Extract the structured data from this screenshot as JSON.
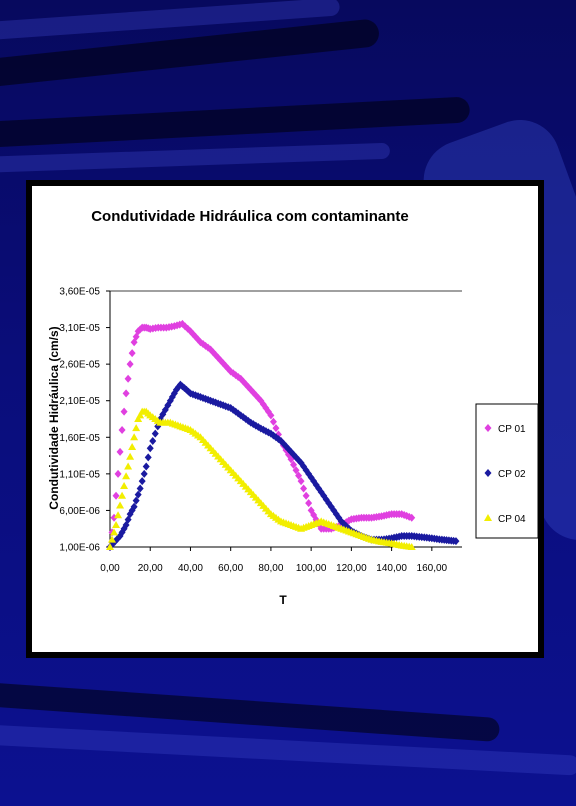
{
  "chart_data": {
    "type": "scatter",
    "title": "Condutividade Hidráulica  com contaminante",
    "xlabel": "T",
    "ylabel": "Condutividade Hidráulica (cm/s)",
    "xlim": [
      0,
      175
    ],
    "ylim": [
      1e-06,
      3.6e-05
    ],
    "x_ticks": [
      "0,00",
      "20,00",
      "40,00",
      "60,00",
      "80,00",
      "100,00",
      "120,00",
      "140,00",
      "160,00"
    ],
    "y_ticks": [
      "1,00E-06",
      "6,00E-06",
      "1,10E-05",
      "1,60E-05",
      "2,10E-05",
      "2,60E-05",
      "3,10E-05",
      "3,60E-05"
    ],
    "grid": "top line only",
    "legend_position": "right",
    "series": [
      {
        "name": "CP 01",
        "color": "#e040e0",
        "marker": "diamond",
        "x": [
          0,
          2,
          4,
          6,
          8,
          10,
          12,
          14,
          16,
          18,
          20,
          24,
          28,
          32,
          36,
          40,
          45,
          50,
          55,
          60,
          65,
          70,
          75,
          80,
          85,
          90,
          95,
          100,
          105,
          110,
          115,
          120,
          125,
          130,
          135,
          140,
          145,
          150
        ],
        "y": [
          1e-06,
          5e-06,
          1.1e-05,
          1.7e-05,
          2.2e-05,
          2.6e-05,
          2.9e-05,
          3.05e-05,
          3.1e-05,
          3.1e-05,
          3.08e-05,
          3.1e-05,
          3.1e-05,
          3.12e-05,
          3.15e-05,
          3.05e-05,
          2.9e-05,
          2.8e-05,
          2.65e-05,
          2.5e-05,
          2.4e-05,
          2.25e-05,
          2.1e-05,
          1.9e-05,
          1.55e-05,
          1.3e-05,
          1e-05,
          6e-06,
          3.5e-06,
          3.5e-06,
          4e-06,
          4.8e-06,
          5e-06,
          5e-06,
          5.2e-06,
          5.5e-06,
          5.5e-06,
          5e-06
        ]
      },
      {
        "name": "CP 02",
        "color": "#1a1aa0",
        "marker": "diamond",
        "x": [
          0,
          5,
          8,
          10,
          12,
          15,
          18,
          20,
          25,
          30,
          33,
          35,
          38,
          40,
          45,
          50,
          55,
          60,
          65,
          70,
          75,
          80,
          85,
          90,
          95,
          100,
          105,
          110,
          115,
          120,
          125,
          130,
          135,
          140,
          145,
          150,
          160,
          165,
          172
        ],
        "y": [
          1e-06,
          2.5e-06,
          4e-06,
          5.5e-06,
          6.5e-06,
          9e-06,
          1.2e-05,
          1.45e-05,
          1.85e-05,
          2.1e-05,
          2.25e-05,
          2.32e-05,
          2.25e-05,
          2.2e-05,
          2.15e-05,
          2.1e-05,
          2.05e-05,
          2e-05,
          1.9e-05,
          1.8e-05,
          1.72e-05,
          1.65e-05,
          1.55e-05,
          1.4e-05,
          1.25e-05,
          1.05e-05,
          8.5e-06,
          6.5e-06,
          4.5e-06,
          3.2e-06,
          2.5e-06,
          2e-06,
          2e-06,
          2.2e-06,
          2.5e-06,
          2.5e-06,
          2.2e-06,
          2e-06,
          1.8e-06
        ]
      },
      {
        "name": "CP 04",
        "color": "#f2ee00",
        "marker": "triangle",
        "x": [
          0,
          3,
          6,
          9,
          12,
          14,
          16,
          18,
          20,
          25,
          30,
          35,
          40,
          45,
          50,
          55,
          60,
          65,
          70,
          75,
          80,
          85,
          90,
          95,
          100,
          105,
          110,
          115,
          120,
          125,
          130,
          135,
          140,
          145,
          150
        ],
        "y": [
          1e-06,
          4e-06,
          8e-06,
          1.2e-05,
          1.6e-05,
          1.85e-05,
          1.95e-05,
          1.95e-05,
          1.9e-05,
          1.8e-05,
          1.8e-05,
          1.75e-05,
          1.7e-05,
          1.6e-05,
          1.45e-05,
          1.3e-05,
          1.15e-05,
          1e-05,
          8.5e-06,
          7e-06,
          5.5e-06,
          4.5e-06,
          4e-06,
          3.5e-06,
          4e-06,
          4.5e-06,
          4e-06,
          3.5e-06,
          3e-06,
          2.5e-06,
          2e-06,
          1.7e-06,
          1.5e-06,
          1.2e-06,
          1e-06
        ]
      }
    ]
  }
}
